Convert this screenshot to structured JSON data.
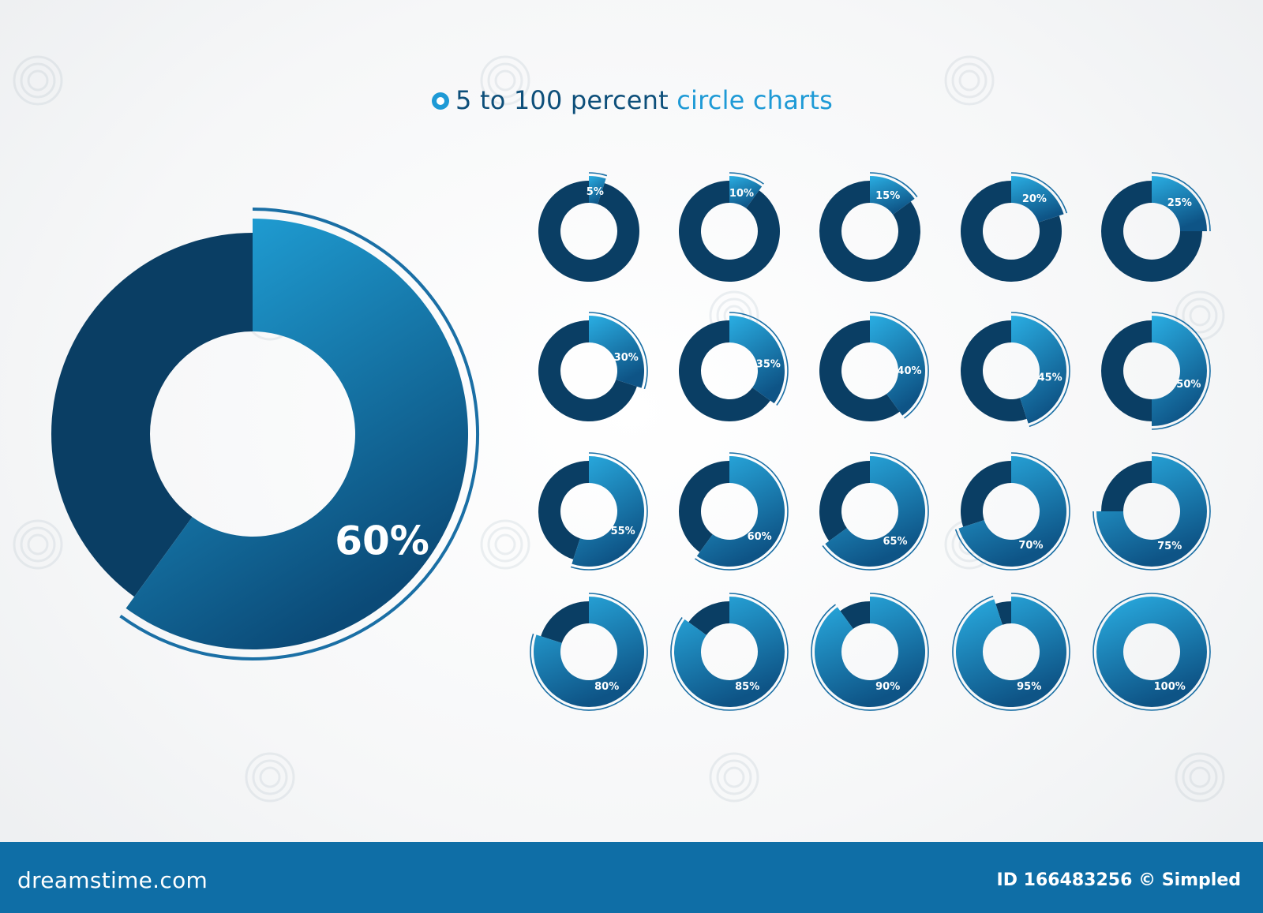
{
  "title": {
    "prefix": "5 to 100 percent",
    "accent": "circle charts"
  },
  "colors": {
    "remainder": "#0a3e64",
    "segment_light": "#22a9e0",
    "segment_dark": "#0b4a77",
    "outline": "#1a6fa5",
    "footer": "#0f6ea6"
  },
  "chart_data": [
    {
      "type": "pie",
      "style": "donut",
      "value": 60,
      "label": "60%",
      "role": "featured"
    },
    {
      "type": "pie",
      "style": "donut-grid",
      "values": [
        5,
        10,
        15,
        20,
        25,
        30,
        35,
        40,
        45,
        50,
        55,
        60,
        65,
        70,
        75,
        80,
        85,
        90,
        95,
        100
      ],
      "labels": [
        "5%",
        "10%",
        "15%",
        "20%",
        "25%",
        "30%",
        "35%",
        "40%",
        "45%",
        "50%",
        "55%",
        "60%",
        "65%",
        "70%",
        "75%",
        "80%",
        "85%",
        "90%",
        "95%",
        "100%"
      ]
    }
  ],
  "footer": {
    "brand": "dreamstime.com",
    "id_text": "ID 166483256 © Simpled"
  }
}
